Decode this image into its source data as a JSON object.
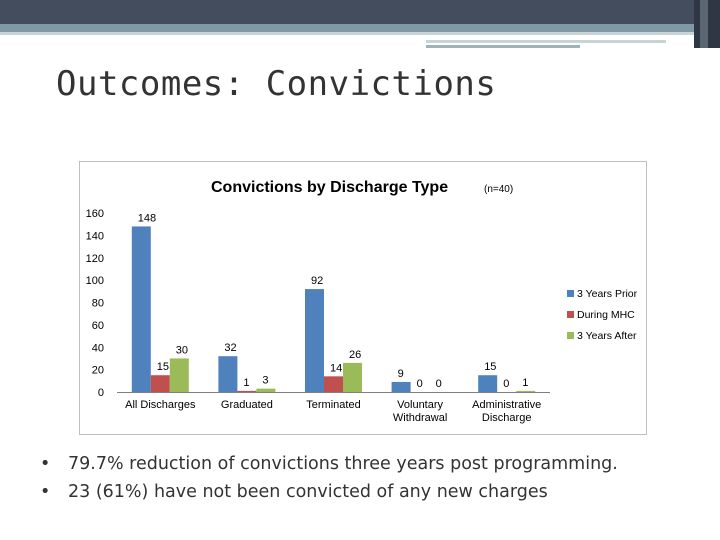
{
  "slide": {
    "title": "Outcomes: Convictions",
    "bullets": [
      "79.7% reduction of convictions three years post programming.",
      "23 (61%) have not been convicted of any new charges"
    ],
    "bullet_glyph": "•"
  },
  "theme": {
    "band_dark": "#434d5e",
    "band_mid": "#7f9aa4",
    "text": "#333333"
  },
  "chart_data": {
    "type": "bar",
    "title": "Convictions by Discharge Type",
    "title_note": "(n=40)",
    "categories": [
      "All Discharges",
      "Graduated",
      "Terminated",
      "Voluntary Withdrawal",
      "Administrative Discharge"
    ],
    "series": [
      {
        "name": "3 Years Prior",
        "color": "#4f81bd",
        "values": [
          148,
          32,
          92,
          9,
          15
        ]
      },
      {
        "name": "During MHC",
        "color": "#c0504d",
        "values": [
          15,
          1,
          14,
          0,
          0
        ]
      },
      {
        "name": "3 Years After",
        "color": "#9bbb59",
        "values": [
          30,
          3,
          26,
          0,
          1
        ]
      }
    ],
    "yticks": [
      0,
      20,
      40,
      60,
      80,
      100,
      120,
      140,
      160
    ],
    "ylim": [
      0,
      160
    ],
    "xlabel": "",
    "ylabel": "",
    "grid": false,
    "legend": "right"
  }
}
